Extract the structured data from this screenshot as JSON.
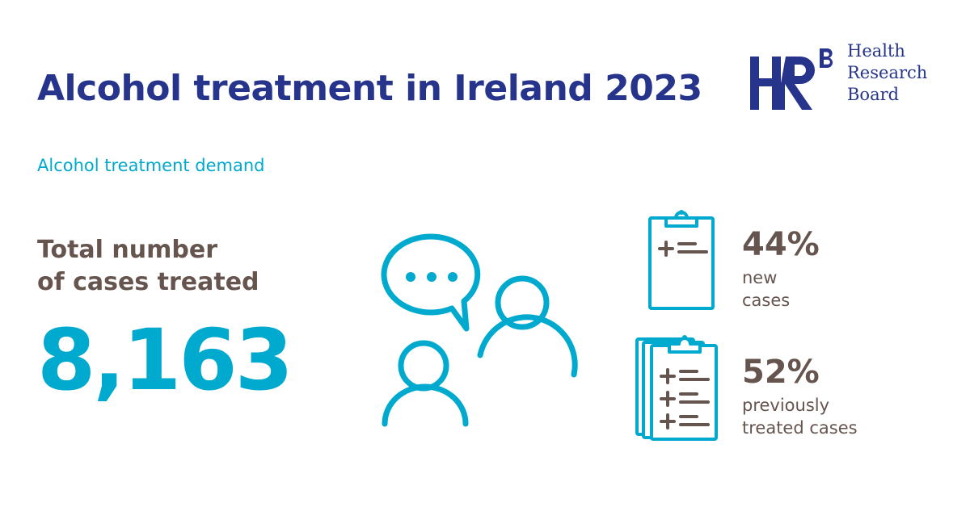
{
  "colors": {
    "navy": "#26348b",
    "teal": "#00a9ce",
    "grey": "#66554e"
  },
  "header": {
    "title": "Alcohol treatment in Ireland 2023"
  },
  "logo": {
    "mark_text": "HRB",
    "name_lines": [
      "Health",
      "Research",
      "Board"
    ]
  },
  "section": {
    "subtitle": "Alcohol treatment demand"
  },
  "total": {
    "label_lines": [
      "Total number",
      "of cases treated"
    ],
    "value": "8,163"
  },
  "icons": {
    "people": "people-conversation-icon",
    "new_cases": "clipboard-icon",
    "previous_cases": "clipboard-stack-icon"
  },
  "stats": [
    {
      "percent": "44%",
      "desc_lines": [
        "new",
        "cases"
      ]
    },
    {
      "percent": "52%",
      "desc_lines": [
        "previously",
        "treated cases"
      ]
    }
  ]
}
